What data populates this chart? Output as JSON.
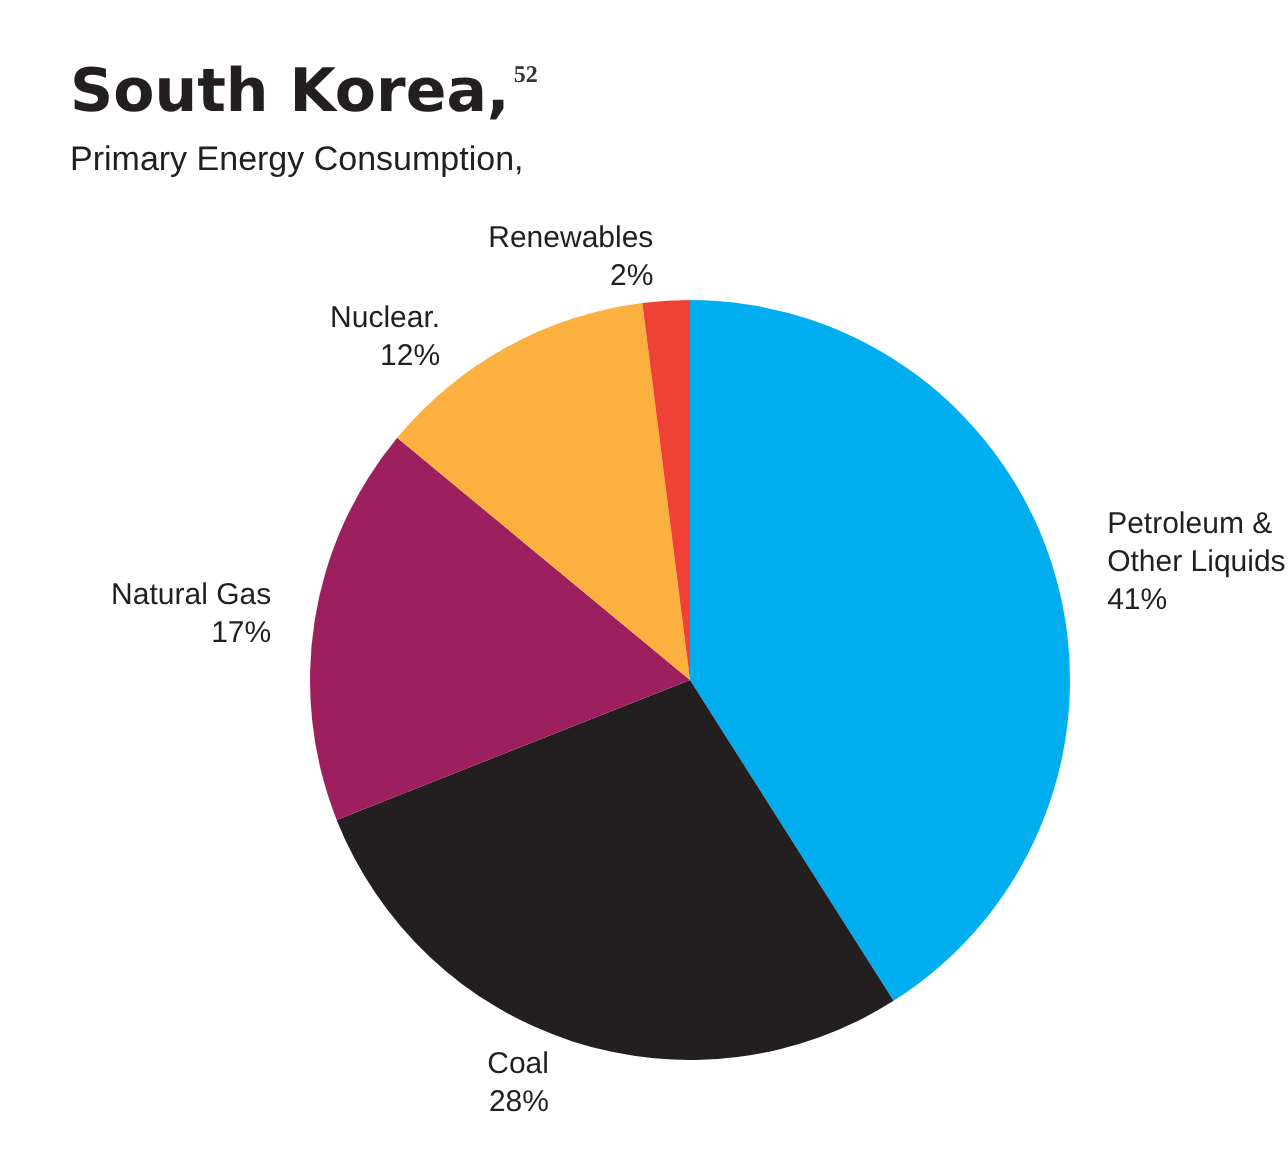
{
  "chart_data": {
    "type": "pie",
    "title": "South Korea,$^{52}$",
    "subtitle": "Primary Energy Consumption,",
    "categories": [
      "Petroleum & Other Liquids",
      "Coal",
      "Natural Gas",
      "Nuclear.",
      "Renewables"
    ],
    "values": [
      41,
      28,
      17,
      12,
      2
    ],
    "value_labels": [
      "41%",
      "28%",
      "17%",
      "12%",
      "2%"
    ],
    "colors": [
      "#00aeef",
      "#231f20",
      "#9e1f5e",
      "#fbb040",
      "#ef4136"
    ],
    "legend": false
  }
}
